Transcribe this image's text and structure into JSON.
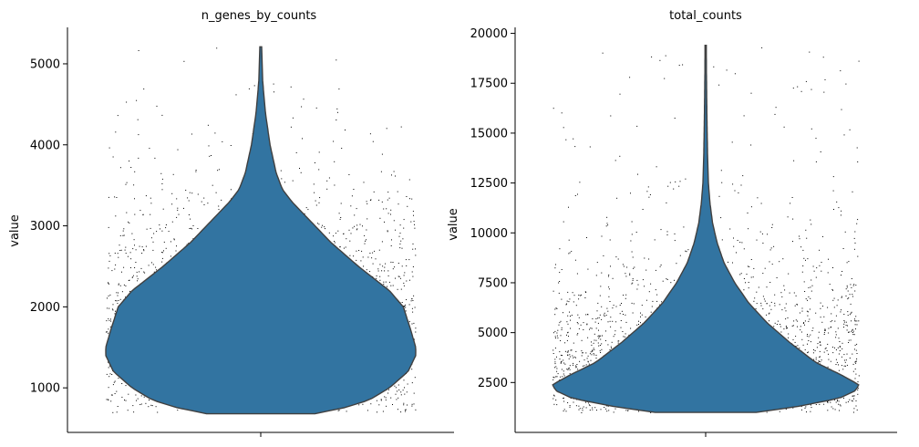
{
  "chart_data": [
    {
      "type": "violin",
      "title": "n_genes_by_counts",
      "ylabel": "value",
      "xlabel": "",
      "ylim": [
        450,
        5450
      ],
      "yticks": [
        1000,
        2000,
        3000,
        4000,
        5000
      ],
      "ytick_labels": [
        "1000",
        "2000",
        "3000",
        "4000",
        "5000"
      ],
      "grid": false,
      "color": "#3274a1",
      "outline_color": "#404040",
      "point_color": "#000000",
      "data_range": [
        680,
        5210
      ],
      "mode": 1500,
      "density_profile": [
        {
          "y": 680,
          "w": 0.35
        },
        {
          "y": 760,
          "w": 0.55
        },
        {
          "y": 850,
          "w": 0.7
        },
        {
          "y": 1000,
          "w": 0.83
        },
        {
          "y": 1200,
          "w": 0.95
        },
        {
          "y": 1400,
          "w": 1.0
        },
        {
          "y": 1500,
          "w": 1.0
        },
        {
          "y": 1700,
          "w": 0.97
        },
        {
          "y": 2000,
          "w": 0.92
        },
        {
          "y": 2200,
          "w": 0.83
        },
        {
          "y": 2500,
          "w": 0.63
        },
        {
          "y": 2800,
          "w": 0.45
        },
        {
          "y": 3100,
          "w": 0.3
        },
        {
          "y": 3300,
          "w": 0.2
        },
        {
          "y": 3450,
          "w": 0.14
        },
        {
          "y": 3650,
          "w": 0.1
        },
        {
          "y": 4000,
          "w": 0.06
        },
        {
          "y": 4400,
          "w": 0.03
        },
        {
          "y": 4800,
          "w": 0.012
        },
        {
          "y": 5210,
          "w": 0.006
        }
      ],
      "strip_range": [
        700,
        5200
      ]
    },
    {
      "type": "violin",
      "title": "total_counts",
      "ylabel": "value",
      "xlabel": "",
      "ylim": [
        0,
        20300
      ],
      "yticks": [
        2500,
        5000,
        7500,
        10000,
        12500,
        15000,
        17500,
        20000
      ],
      "ytick_labels": [
        "2500",
        "5000",
        "7500",
        "10000",
        "12500",
        "15000",
        "17500",
        "20000"
      ],
      "grid": false,
      "color": "#3274a1",
      "outline_color": "#404040",
      "point_color": "#000000",
      "data_range": [
        1000,
        19400
      ],
      "mode": 2400,
      "density_profile": [
        {
          "y": 1000,
          "w": 0.33
        },
        {
          "y": 1300,
          "w": 0.6
        },
        {
          "y": 1700,
          "w": 0.87
        },
        {
          "y": 2100,
          "w": 0.98
        },
        {
          "y": 2400,
          "w": 1.0
        },
        {
          "y": 2900,
          "w": 0.88
        },
        {
          "y": 3500,
          "w": 0.72
        },
        {
          "y": 4500,
          "w": 0.55
        },
        {
          "y": 5500,
          "w": 0.4
        },
        {
          "y": 6500,
          "w": 0.28
        },
        {
          "y": 7500,
          "w": 0.19
        },
        {
          "y": 8500,
          "w": 0.12
        },
        {
          "y": 9500,
          "w": 0.075
        },
        {
          "y": 10500,
          "w": 0.045
        },
        {
          "y": 11500,
          "w": 0.028
        },
        {
          "y": 12500,
          "w": 0.018
        },
        {
          "y": 14000,
          "w": 0.012
        },
        {
          "y": 16000,
          "w": 0.008
        },
        {
          "y": 18000,
          "w": 0.005
        },
        {
          "y": 19400,
          "w": 0.004
        }
      ],
      "strip_range": [
        1000,
        19400
      ]
    }
  ]
}
